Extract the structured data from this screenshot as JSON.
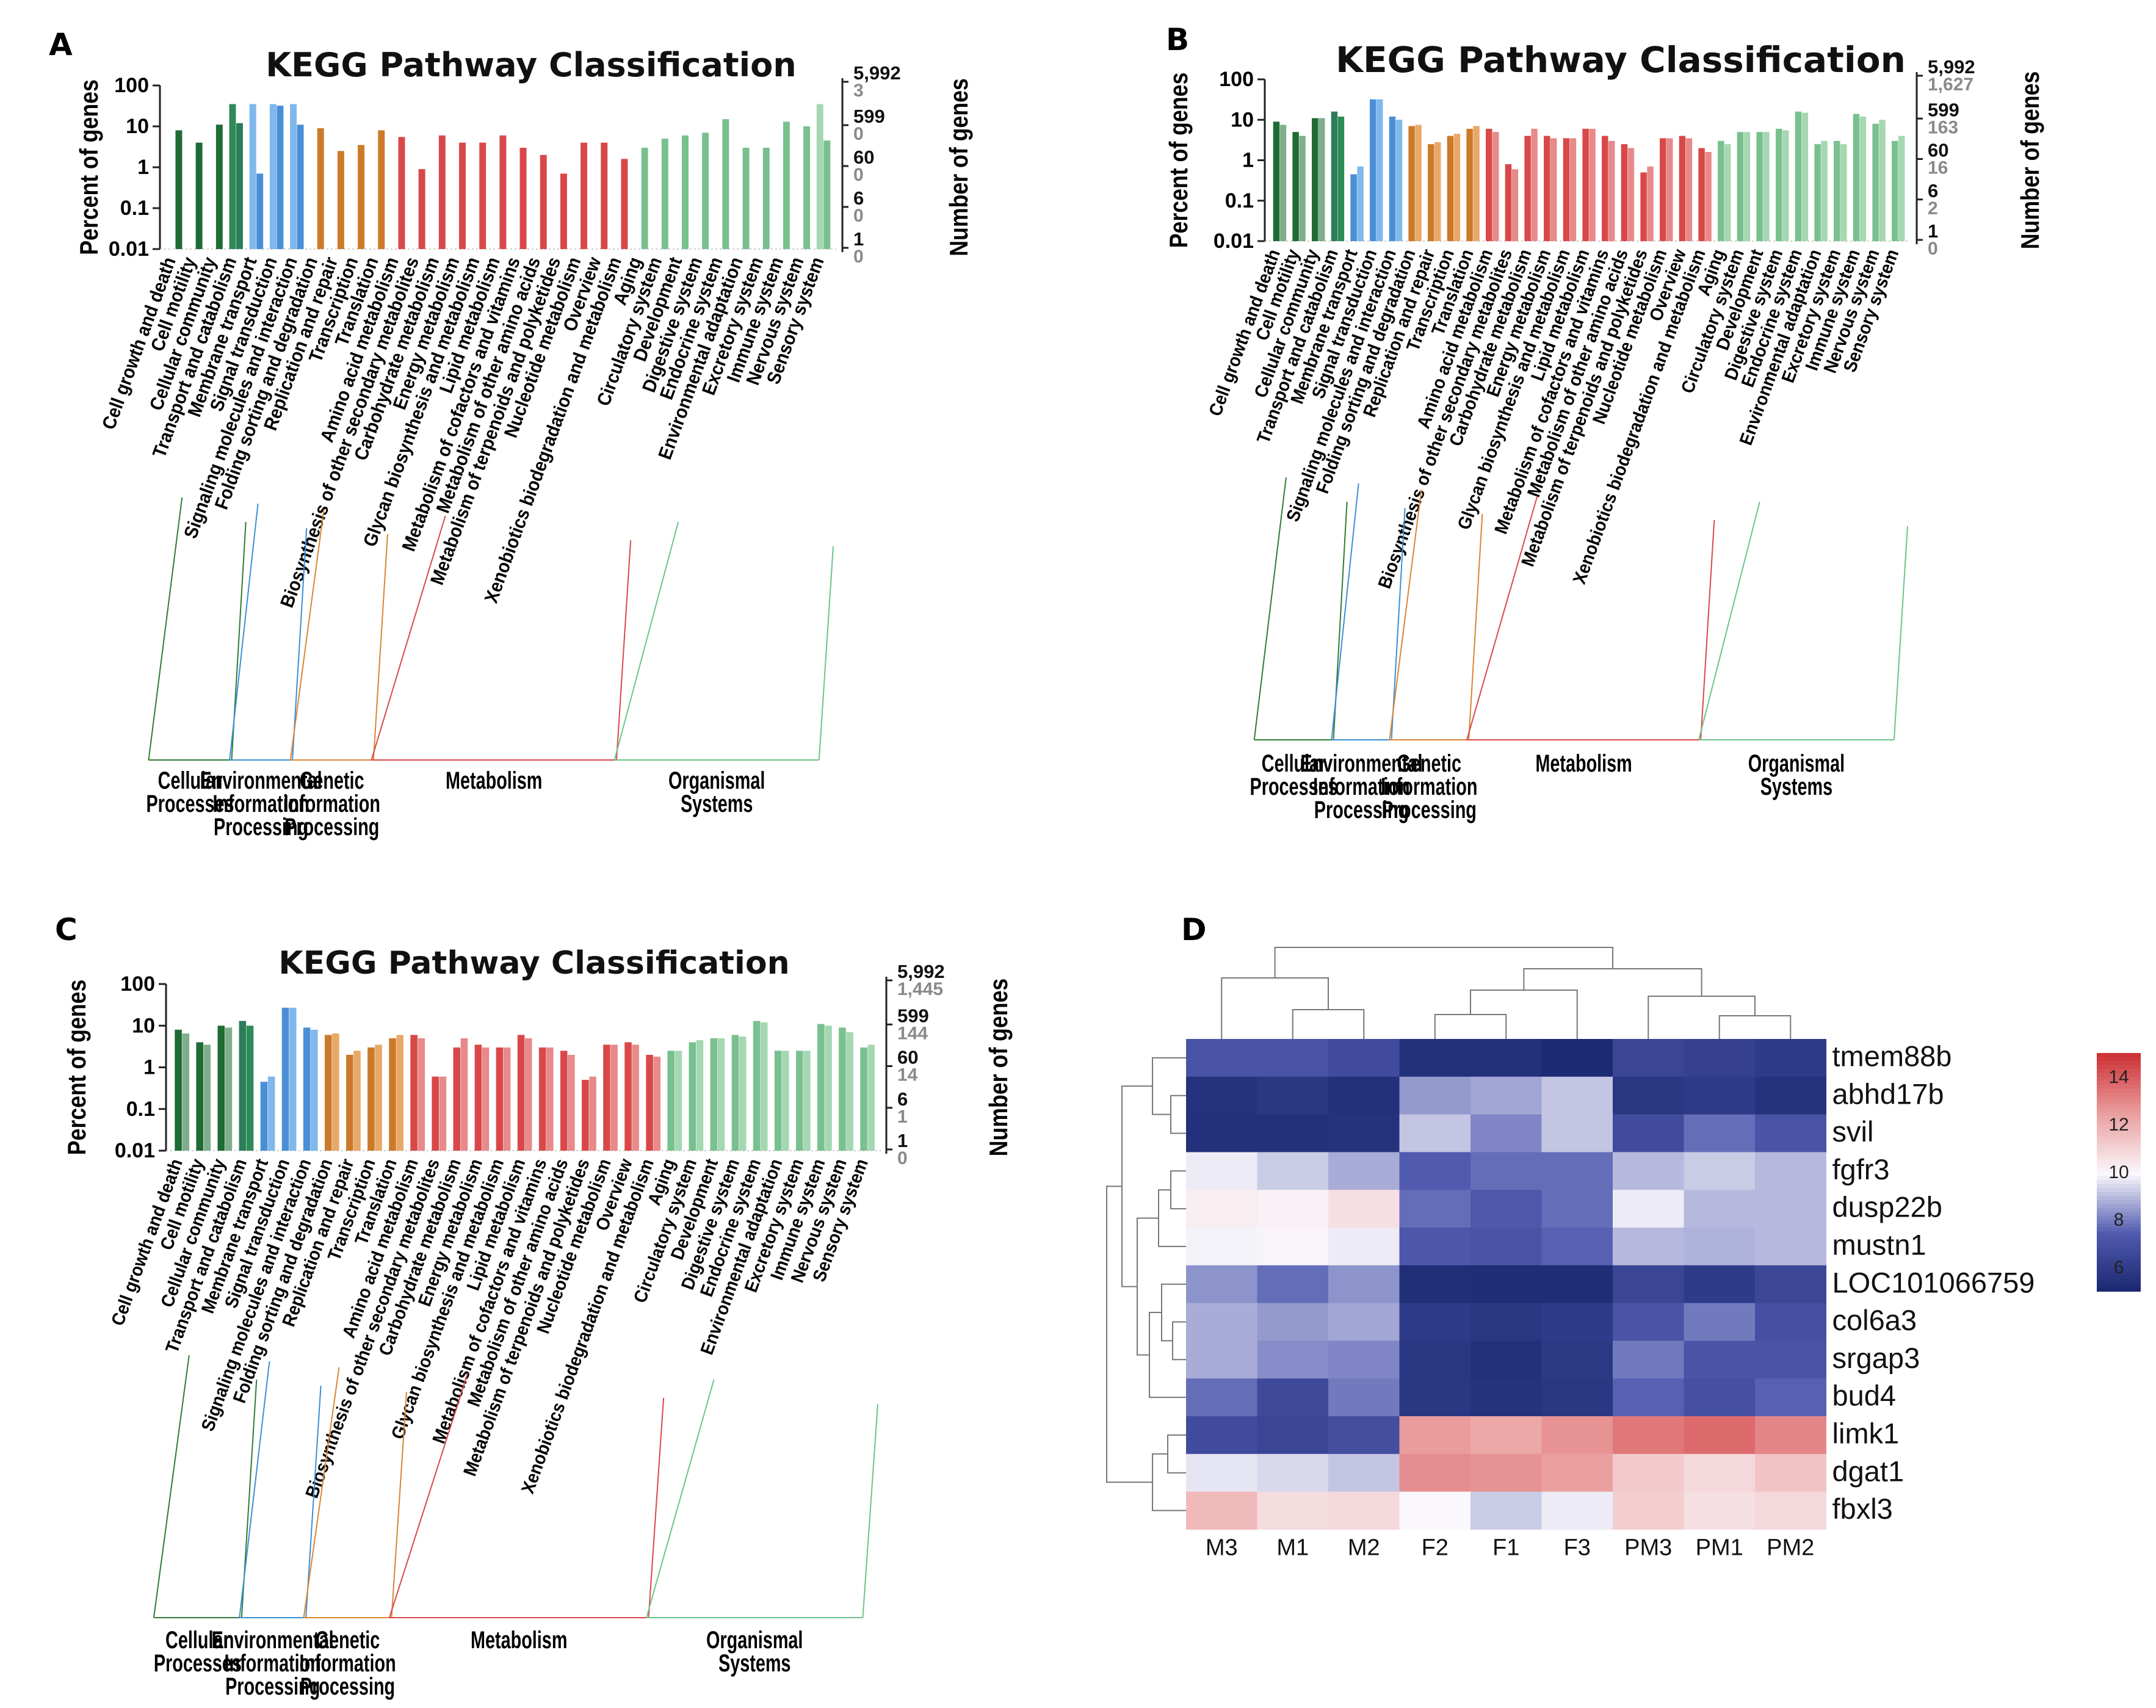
{
  "categories": [
    "Cell growth and death",
    "Cell motility",
    "Cellular community",
    "Transport and catabolism",
    "Membrane transport",
    "Signal transduction",
    "Signaling molecules and interaction",
    "Folding sorting and degradation",
    "Replication and repair",
    "Transcription",
    "Translation",
    "Amino acid metabolism",
    "Biosynthesis of other secondary metabolites",
    "Carbohydrate metabolism",
    "Energy metabolism",
    "Glycan biosynthesis and metabolism",
    "Lipid metabolism",
    "Metabolism of cofactors and vitamins",
    "Metabolism of other amino acids",
    "Metabolism of terpenoids and polyketides",
    "Nucleotide metabolism",
    "Overview",
    "Xenobiotics biodegradation and metabolism",
    "Aging",
    "Circulatory system",
    "Development",
    "Digestive system",
    "Endocrine system",
    "Environmental adaptation",
    "Excretory system",
    "Immune system",
    "Nervous system",
    "Sensory system"
  ],
  "groups": [
    {
      "name": [
        "Cellular",
        "Processes"
      ],
      "from": 0,
      "to": 3,
      "color": "#2e7d32"
    },
    {
      "name": [
        "Environmental",
        "Information",
        "Processing"
      ],
      "from": 4,
      "to": 6,
      "color": "#3b8fd6"
    },
    {
      "name": [
        "Genetic",
        "Information",
        "Processing"
      ],
      "from": 7,
      "to": 10,
      "color": "#d88633"
    },
    {
      "name": [
        "Metabolism"
      ],
      "from": 11,
      "to": 22,
      "color": "#d94848"
    },
    {
      "name": [
        "Organismal",
        "Systems"
      ],
      "from": 23,
      "to": 32,
      "color": "#6cc48a"
    }
  ],
  "colors": {
    "dark": [
      "#1e6b33",
      "#2e7d5a",
      "#4a8fd6",
      "#cc7a2a",
      "#d94848",
      "#79c08f"
    ],
    "light": [
      "#7fae8a",
      "#2e8b57",
      "#7fb8ec",
      "#e8a968",
      "#e88a8a",
      "#a5d8b2"
    ]
  },
  "chart_data": [
    {
      "panel": "A",
      "type": "bar",
      "title": "KEGG Pathway Classification",
      "ylabel": "Percent of genes",
      "y2label": "Number of genes",
      "yticks": [
        "100",
        "10",
        "1",
        "0.1",
        "0.01"
      ],
      "y2ticks_black": [
        "5,992",
        "599",
        "60",
        "6",
        "1"
      ],
      "y2ticks_gray": [
        "3",
        "0",
        "0",
        "0",
        "0"
      ],
      "series": [
        {
          "name": "light",
          "values": [
            null,
            null,
            null,
            35,
            35,
            35,
            35,
            null,
            null,
            null,
            null,
            null,
            null,
            null,
            null,
            null,
            null,
            null,
            null,
            null,
            null,
            null,
            null,
            null,
            null,
            null,
            null,
            null,
            null,
            null,
            null,
            null,
            35
          ]
        },
        {
          "name": "dark",
          "values": [
            8,
            4,
            11,
            12,
            0.7,
            32,
            11,
            9,
            2.5,
            3.5,
            8,
            5.5,
            0.9,
            6,
            4,
            4,
            6,
            3,
            2,
            0.7,
            4,
            4,
            1.6,
            3,
            5,
            6,
            7,
            15,
            3,
            3,
            13,
            10,
            4.5
          ]
        }
      ]
    },
    {
      "panel": "B",
      "type": "bar",
      "title": "KEGG Pathway Classification",
      "ylabel": "Percent of genes",
      "y2label": "Number of genes",
      "yticks": [
        "100",
        "10",
        "1",
        "0.1",
        "0.01"
      ],
      "y2ticks_black": [
        "5,992",
        "599",
        "60",
        "6",
        "1"
      ],
      "y2ticks_gray": [
        "1,627",
        "163",
        "16",
        "2",
        "0"
      ],
      "series": [
        {
          "name": "dark",
          "values": [
            9,
            5,
            11,
            16,
            0.45,
            32,
            12,
            7,
            2.5,
            4,
            6,
            6,
            0.8,
            4,
            4,
            3.5,
            6,
            4,
            2.5,
            0.5,
            3.5,
            4,
            2,
            3,
            5,
            5,
            6,
            16,
            2.5,
            3,
            14,
            8,
            3
          ]
        },
        {
          "name": "light",
          "values": [
            7.5,
            4,
            11,
            12,
            0.7,
            32,
            10,
            7.5,
            2.8,
            4.5,
            7,
            5,
            0.6,
            6,
            3.5,
            3.5,
            6,
            3,
            2,
            0.7,
            3.5,
            3.5,
            1.6,
            2.5,
            5,
            5,
            5.5,
            15,
            3,
            2.5,
            12,
            10,
            4
          ]
        }
      ]
    },
    {
      "panel": "C",
      "type": "bar",
      "title": "KEGG Pathway Classification",
      "ylabel": "Percent of genes",
      "y2label": "Number of genes",
      "yticks": [
        "100",
        "10",
        "1",
        "0.1",
        "0.01"
      ],
      "y2ticks_black": [
        "5,992",
        "599",
        "60",
        "6",
        "1"
      ],
      "y2ticks_gray": [
        "1,445",
        "144",
        "14",
        "1",
        "0"
      ],
      "series": [
        {
          "name": "dark",
          "values": [
            8,
            4,
            10,
            13,
            0.45,
            27,
            9,
            6,
            2,
            3,
            5,
            6,
            0.6,
            3,
            3.5,
            3,
            6,
            3,
            2.5,
            0.5,
            3.5,
            4,
            2,
            2.5,
            4,
            5,
            6,
            13,
            2.5,
            2.5,
            11,
            9,
            3
          ]
        },
        {
          "name": "light",
          "values": [
            6.5,
            3.5,
            9,
            10,
            0.6,
            27,
            8,
            6.5,
            2.5,
            3.5,
            6,
            5,
            0.6,
            5,
            3,
            3,
            5,
            3,
            2,
            0.6,
            3.5,
            3.5,
            1.8,
            2.5,
            4.5,
            5,
            5.5,
            12,
            2.5,
            2.5,
            10,
            7,
            3.5
          ]
        }
      ]
    },
    {
      "panel": "D",
      "type": "heatmap",
      "rows": [
        "tmem88b",
        "abhd17b",
        "svil",
        "fgfr3",
        "dusp22b",
        "mustn1",
        "LOC101066759",
        "col6a3",
        "srgap3",
        "bud4",
        "limk1",
        "dgat1",
        "fbxl3"
      ],
      "cols": [
        "M3",
        "M1",
        "M2",
        "F2",
        "F1",
        "F3",
        "PM3",
        "PM1",
        "PM2"
      ],
      "values": [
        [
          7.2,
          7.2,
          6.8,
          5.5,
          5.5,
          5.2,
          6.5,
          6.3,
          6.0
        ],
        [
          5.6,
          5.8,
          5.5,
          8.5,
          8.7,
          9.2,
          5.8,
          6.0,
          5.6
        ],
        [
          5.5,
          5.5,
          5.6,
          9.2,
          8.2,
          9.2,
          6.8,
          7.8,
          7.2
        ],
        [
          9.8,
          9.3,
          8.8,
          7.5,
          7.8,
          7.8,
          9.0,
          9.3,
          9.0
        ],
        [
          10.3,
          10.2,
          10.7,
          7.8,
          7.4,
          7.8,
          9.8,
          9.0,
          9.0
        ],
        [
          9.9,
          10.1,
          9.8,
          7.3,
          7.2,
          7.6,
          9.0,
          8.9,
          9.0
        ],
        [
          8.4,
          7.8,
          8.4,
          5.4,
          5.3,
          5.3,
          6.5,
          6.0,
          6.6
        ],
        [
          8.8,
          8.5,
          8.7,
          6.0,
          5.8,
          6.0,
          7.2,
          8.0,
          7.0
        ],
        [
          8.8,
          8.3,
          8.2,
          5.8,
          5.5,
          5.9,
          8.0,
          7.2,
          7.2
        ],
        [
          7.8,
          6.7,
          8.0,
          5.8,
          5.6,
          5.8,
          7.6,
          7.0,
          7.6
        ],
        [
          6.8,
          6.5,
          6.9,
          12.6,
          12.3,
          12.8,
          13.4,
          13.7,
          13.1
        ],
        [
          9.7,
          9.5,
          9.2,
          12.9,
          12.8,
          12.5,
          11.3,
          10.9,
          11.5
        ],
        [
          11.8,
          10.8,
          10.9,
          10.0,
          9.3,
          9.8,
          11.2,
          10.7,
          10.9
        ]
      ],
      "colorbar": {
        "ticks": [
          "14",
          "12",
          "10",
          "8",
          "6"
        ],
        "range": [
          5,
          15
        ]
      }
    }
  ]
}
